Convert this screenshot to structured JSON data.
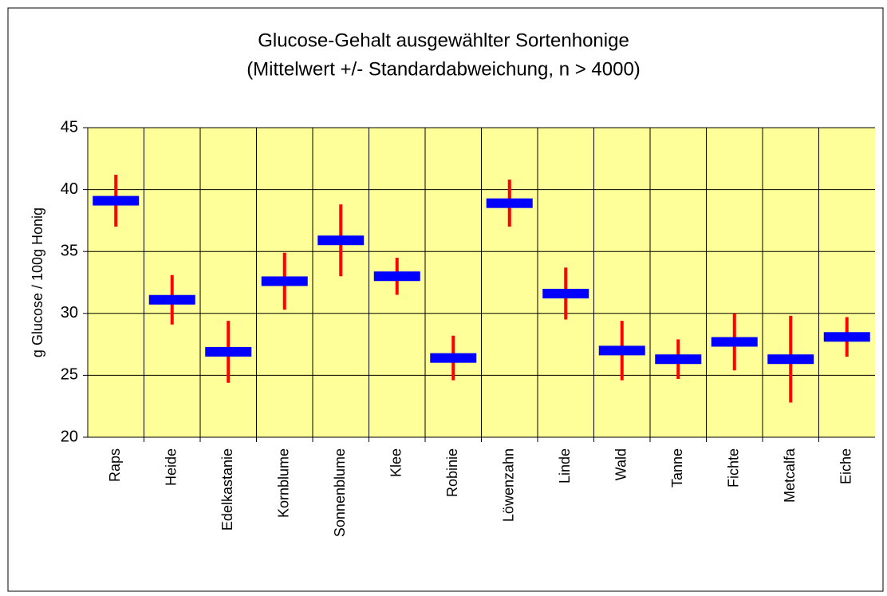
{
  "chart_data": {
    "type": "errorbar",
    "title": "Glucose-Gehalt ausgewählter Sortenhonige",
    "subtitle": "(Mittelwert +/- Standardabweichung,  n > 4000)",
    "y_label": "g Glucose / 100g Honig",
    "categories": [
      "Raps",
      "Heide",
      "Edelkastanie",
      "Kornblume",
      "Sonnenblume",
      "Klee",
      "Robinie",
      "Löwenzahn",
      "Linde",
      "Wald",
      "Tanne",
      "Fichte",
      "Metcalfa",
      "Eiche"
    ],
    "values": [
      39.1,
      31.1,
      26.9,
      32.6,
      35.9,
      33.0,
      26.4,
      38.9,
      31.6,
      27.0,
      26.3,
      27.7,
      26.3,
      28.1
    ],
    "errors": [
      2.1,
      2.0,
      2.5,
      2.3,
      2.9,
      1.5,
      1.8,
      1.9,
      2.1,
      2.4,
      1.6,
      2.3,
      3.5,
      1.6
    ],
    "color": "#0000ff",
    "error_color": "#ff0000",
    "background": "#ffff99",
    "ylim": [
      20,
      45
    ],
    "yticks": [
      20,
      25,
      30,
      35,
      40,
      45
    ],
    "grid": true
  }
}
